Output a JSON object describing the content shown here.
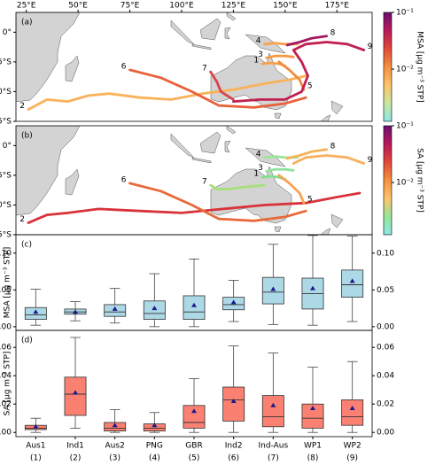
{
  "chart_data": [
    {
      "type": "map",
      "panel_label": "(a)",
      "xlim": [
        20,
        192
      ],
      "ylim": [
        -45,
        10
      ],
      "xticks": [
        {
          "value": 25,
          "label": "25°E"
        },
        {
          "value": 50,
          "label": "50°E"
        },
        {
          "value": 75,
          "label": "75°E"
        },
        {
          "value": 100,
          "label": "100°E"
        },
        {
          "value": 125,
          "label": "125°E"
        },
        {
          "value": 150,
          "label": "150°E"
        },
        {
          "value": 175,
          "label": "175°E"
        }
      ],
      "yticks": [
        {
          "value": 0,
          "label": "0°"
        },
        {
          "value": -15,
          "label": "15°S"
        },
        {
          "value": -30,
          "label": "30°S"
        },
        {
          "value": -45,
          "label": "45°S"
        }
      ],
      "colorbar": {
        "label": "MSA [μg m⁻³ STP]",
        "clim": [
          0.0012,
          0.1
        ],
        "log": true,
        "ticks": [
          {
            "value": 0.1,
            "label": "10⁻¹"
          },
          {
            "value": 0.01,
            "label": "10⁻²"
          }
        ],
        "colors": [
          "#8ee6e6",
          "#c9e7a0",
          "#fdc36a",
          "#f5903f",
          "#e24a3a",
          "#b8185a",
          "#6a0f6e"
        ]
      },
      "series": [
        {
          "name": "1",
          "color": "#f6a04d",
          "x": [
            139,
            143,
            147,
            150
          ],
          "y": [
            -16,
            -15.5,
            -16,
            -17
          ]
        },
        {
          "name": "2",
          "color": "#f9b25a",
          "x": [
            26,
            35,
            45,
            55,
            65,
            80,
            95,
            110,
            125,
            140,
            152,
            160
          ],
          "y": [
            -39,
            -34,
            -35,
            -32,
            -31,
            -33,
            -34,
            -31,
            -29,
            -26,
            -24,
            -22
          ]
        },
        {
          "name": "3",
          "color": "#f59b45",
          "x": [
            141,
            145,
            150,
            154
          ],
          "y": [
            -13,
            -12,
            -12,
            -12.5
          ]
        },
        {
          "name": "4",
          "color": "#f7a24f",
          "x": [
            140,
            145,
            150,
            156
          ],
          "y": [
            -6,
            -5.5,
            -6,
            -6
          ]
        },
        {
          "name": "5",
          "color": "#f08a3e",
          "x": [
            159,
            157,
            152,
            147
          ],
          "y": [
            -29,
            -24,
            -19,
            -15
          ]
        },
        {
          "name": "6",
          "color": "#e8613a",
          "x": [
            75,
            90,
            105,
            118,
            135,
            150,
            160
          ],
          "y": [
            -19,
            -23,
            -30,
            -37,
            -38,
            -36,
            -33
          ]
        },
        {
          "name": "7",
          "color": "#d9434a",
          "x": [
            114,
            117,
            119,
            125
          ],
          "y": [
            -20,
            -25,
            -30,
            -34
          ]
        },
        {
          "name": "8",
          "color": "#a2195f",
          "x": [
            170,
            163,
            157,
            151
          ],
          "y": [
            -2,
            -3,
            -5,
            -6.5
          ]
        },
        {
          "name": "9",
          "color": "#c0204f",
          "x": [
            188,
            180,
            170,
            160,
            154,
            158,
            161,
            158,
            150,
            138,
            125
          ],
          "y": [
            -9,
            -6,
            -5,
            -6,
            -9,
            -15,
            -22,
            -30,
            -34,
            -34,
            -35
          ]
        }
      ]
    },
    {
      "type": "map",
      "panel_label": "(b)",
      "xlim": [
        20,
        192
      ],
      "ylim": [
        -45,
        10
      ],
      "yticks": [
        {
          "value": 0,
          "label": "0°"
        },
        {
          "value": -15,
          "label": "15°S"
        },
        {
          "value": -30,
          "label": "30°S"
        },
        {
          "value": -45,
          "label": "45°S"
        }
      ],
      "colorbar": {
        "label": "SA [μg m⁻³ STP]",
        "clim": [
          0.0012,
          0.1
        ],
        "log": true,
        "ticks": [
          {
            "value": 0.1,
            "label": "10⁻¹"
          },
          {
            "value": 0.01,
            "label": "10⁻²"
          }
        ],
        "colors": [
          "#8ee6e6",
          "#98e69a",
          "#fdc36a",
          "#f5903f",
          "#e24a3a",
          "#b8185a",
          "#6a0f6e"
        ]
      },
      "series": [
        {
          "name": "1",
          "color": "#7fe08f",
          "x": [
            139,
            143,
            147,
            150
          ],
          "y": [
            -16,
            -15.5,
            -16,
            -17
          ]
        },
        {
          "name": "2",
          "color": "#d8333a",
          "x": [
            26,
            35,
            45,
            60,
            80,
            100,
            120,
            140,
            160,
            175,
            186
          ],
          "y": [
            -39,
            -35,
            -34,
            -32,
            -33,
            -34,
            -32,
            -30,
            -29,
            -26,
            -24
          ]
        },
        {
          "name": "3",
          "color": "#90e4a0",
          "x": [
            141,
            145,
            150,
            154
          ],
          "y": [
            -13,
            -12,
            -12,
            -12.5
          ]
        },
        {
          "name": "4",
          "color": "#9ee69a",
          "x": [
            140,
            145,
            150,
            156
          ],
          "y": [
            -6,
            -5.5,
            -6,
            -6
          ]
        },
        {
          "name": "5",
          "color": "#f7a24f",
          "x": [
            159,
            157,
            152,
            147
          ],
          "y": [
            -29,
            -24,
            -19,
            -15
          ]
        },
        {
          "name": "6",
          "color": "#e86a3a",
          "x": [
            75,
            90,
            105,
            118,
            135,
            150,
            160
          ],
          "y": [
            -19,
            -23,
            -30,
            -37,
            -38,
            -36,
            -33
          ]
        },
        {
          "name": "7",
          "color": "#a7df7a",
          "x": [
            114,
            117,
            122,
            130,
            140
          ],
          "y": [
            -20,
            -22,
            -22,
            -21,
            -20
          ]
        },
        {
          "name": "8",
          "color": "#f6b35a",
          "x": [
            170,
            163,
            157,
            151
          ],
          "y": [
            -2,
            -3,
            -5,
            -6.5
          ]
        },
        {
          "name": "9",
          "color": "#f8b060",
          "x": [
            188,
            180,
            170,
            160,
            154
          ],
          "y": [
            -9,
            -6,
            -5,
            -6,
            -9
          ]
        }
      ]
    },
    {
      "type": "box",
      "panel_label": "(c)",
      "ylabel": "MSA [μg m⁻³ STP]",
      "color": "#add8e6",
      "categories": [
        "Aus1",
        "Ind1",
        "Aus2",
        "PNG",
        "GBR",
        "Ind2",
        "Ind-Aus",
        "WP1",
        "WP2"
      ],
      "ylim": [
        -0.005,
        0.125
      ],
      "yticks": [
        {
          "value": 0,
          "label": "0.00"
        },
        {
          "value": 0.05,
          "label": "0.05"
        },
        {
          "value": 0.1,
          "label": "0.10"
        }
      ],
      "min": [
        0.002,
        0.008,
        0.005,
        0.0,
        0.0,
        0.007,
        0.003,
        0.002,
        0.007
      ],
      "q1": [
        0.01,
        0.017,
        0.014,
        0.01,
        0.01,
        0.023,
        0.031,
        0.024,
        0.04
      ],
      "median": [
        0.016,
        0.02,
        0.02,
        0.018,
        0.02,
        0.03,
        0.047,
        0.045,
        0.057
      ],
      "q3": [
        0.026,
        0.024,
        0.03,
        0.035,
        0.042,
        0.04,
        0.067,
        0.066,
        0.077
      ],
      "max": [
        0.051,
        0.034,
        0.052,
        0.072,
        0.092,
        0.063,
        0.112,
        0.124,
        0.123
      ],
      "mean": [
        0.02,
        0.02,
        0.024,
        0.025,
        0.029,
        0.033,
        0.051,
        0.052,
        0.062
      ]
    },
    {
      "type": "box",
      "panel_label": "(d)",
      "ylabel": "SA [μg m⁻³ STP]",
      "color": "#fa8072",
      "categories": [
        "Aus1",
        "Ind1",
        "Aus2",
        "PNG",
        "GBR",
        "Ind2",
        "Ind-Aus",
        "WP1",
        "WP2"
      ],
      "category_numbers": [
        "(1)",
        "(2)",
        "(3)",
        "(4)",
        "(5)",
        "(6)",
        "(7)",
        "(8)",
        "(9)"
      ],
      "ylim": [
        -0.003,
        0.072
      ],
      "yticks": [
        {
          "value": 0,
          "label": "0.00"
        },
        {
          "value": 0.02,
          "label": "0.02"
        },
        {
          "value": 0.04,
          "label": "0.04"
        },
        {
          "value": 0.06,
          "label": "0.06"
        }
      ],
      "min": [
        0.0,
        0.003,
        0.0,
        0.0,
        0.0,
        0.0,
        0.0,
        0.0,
        0.0
      ],
      "q1": [
        0.002,
        0.012,
        0.001,
        0.001,
        0.003,
        0.008,
        0.004,
        0.003,
        0.005
      ],
      "median": [
        0.003,
        0.027,
        0.003,
        0.003,
        0.007,
        0.023,
        0.011,
        0.01,
        0.011
      ],
      "q3": [
        0.005,
        0.039,
        0.007,
        0.006,
        0.019,
        0.032,
        0.026,
        0.02,
        0.023
      ],
      "max": [
        0.01,
        0.067,
        0.016,
        0.014,
        0.038,
        0.061,
        0.056,
        0.046,
        0.05
      ],
      "mean": [
        0.004,
        0.028,
        0.005,
        0.005,
        0.015,
        0.022,
        0.019,
        0.017,
        0.017
      ]
    }
  ]
}
